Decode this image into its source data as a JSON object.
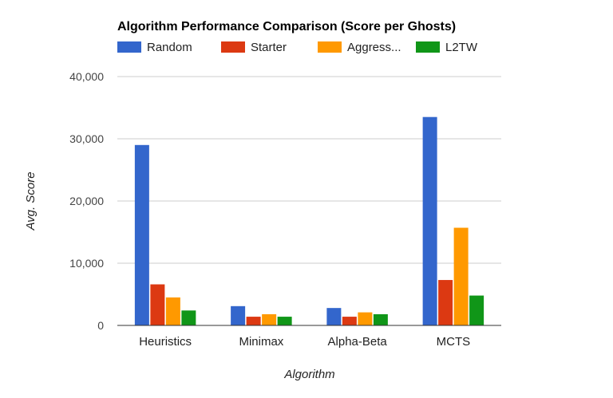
{
  "chart_data": {
    "type": "bar",
    "title": "Algorithm Performance Comparison (Score per Ghosts)",
    "xlabel": "Algorithm",
    "ylabel": "Avg. Score",
    "categories": [
      "Heuristics",
      "Minimax",
      "Alpha-Beta",
      "MCTS"
    ],
    "ylim": [
      0,
      40000
    ],
    "yticks": [
      0,
      10000,
      20000,
      30000,
      40000
    ],
    "ytick_labels": [
      "0",
      "10,000",
      "20,000",
      "30,000",
      "40,000"
    ],
    "grid": true,
    "legend_position": "top",
    "series": [
      {
        "name": "Random",
        "color": "#3366cc",
        "values": [
          29000,
          3100,
          2800,
          33500
        ]
      },
      {
        "name": "Starter",
        "color": "#dc3912",
        "values": [
          6600,
          1400,
          1400,
          7300
        ]
      },
      {
        "name": "Aggress...",
        "color": "#ff9900",
        "values": [
          4500,
          1800,
          2100,
          15700
        ]
      },
      {
        "name": "L2TW",
        "color": "#109618",
        "values": [
          2400,
          1400,
          1800,
          4800
        ]
      }
    ]
  }
}
